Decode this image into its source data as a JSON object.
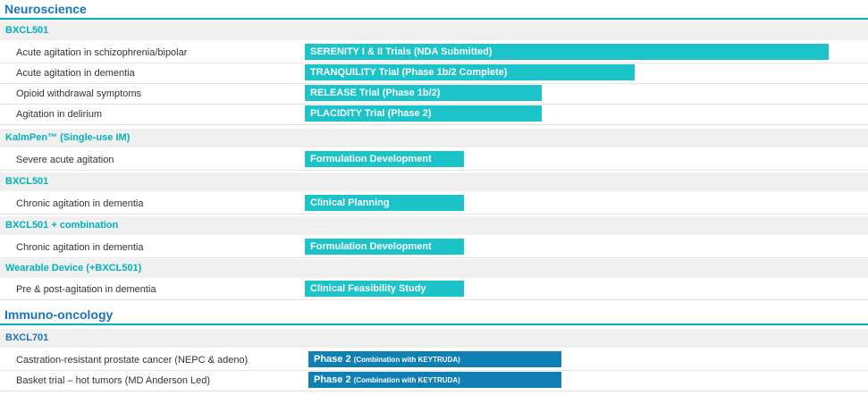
{
  "colors": {
    "accent": "#00b2b9",
    "section_title": "#1b75bb",
    "neuro_bar": "#1cc3c9",
    "onco_bar": "#0f7fb6"
  },
  "neuroscience": {
    "title": "Neuroscience",
    "groups": [
      {
        "drug": "BXCL501",
        "rows": [
          {
            "indication": "Acute agitation in schizophrenia/bipolar",
            "bar": "SERENITY I & II Trials (NDA Submitted)"
          },
          {
            "indication": "Acute agitation in dementia",
            "bar": "TRANQUILITY Trial (Phase 1b/2 Complete)"
          },
          {
            "indication": "Opioid withdrawal symptoms",
            "bar": "RELEASE Trial (Phase 1b/2)"
          },
          {
            "indication": "Agitation in delirium",
            "bar": "PLACIDITY Trial (Phase 2)"
          }
        ]
      },
      {
        "drug": "KalmPen™ (Single-use IM)",
        "rows": [
          {
            "indication": "Severe acute agitation",
            "bar": "Formulation Development"
          }
        ]
      },
      {
        "drug": "BXCL501",
        "rows": [
          {
            "indication": "Chronic agitation in dementia",
            "bar": "Clinical Planning"
          }
        ]
      },
      {
        "drug": "BXCL501 + combination",
        "rows": [
          {
            "indication": "Chronic agitation in dementia",
            "bar": "Formulation Development"
          }
        ]
      },
      {
        "drug": "Wearable Device (+BXCL501)",
        "rows": [
          {
            "indication": "Pre & post-agitation in dementia",
            "bar": "Clinical Feasibility Study"
          }
        ]
      }
    ]
  },
  "immuno": {
    "title": "Immuno-oncology",
    "groups": [
      {
        "drug": "BXCL701",
        "rows": [
          {
            "indication": "Castration-resistant prostate cancer (NEPC & adeno)",
            "bar_main": "Phase 2",
            "bar_note": "(Combination with KEYTRUDA)"
          },
          {
            "indication": "Basket trial – hot tumors (MD Anderson Led)",
            "bar_main": "Phase 2",
            "bar_note": "(Combination with KEYTRUDA)"
          }
        ]
      }
    ]
  }
}
